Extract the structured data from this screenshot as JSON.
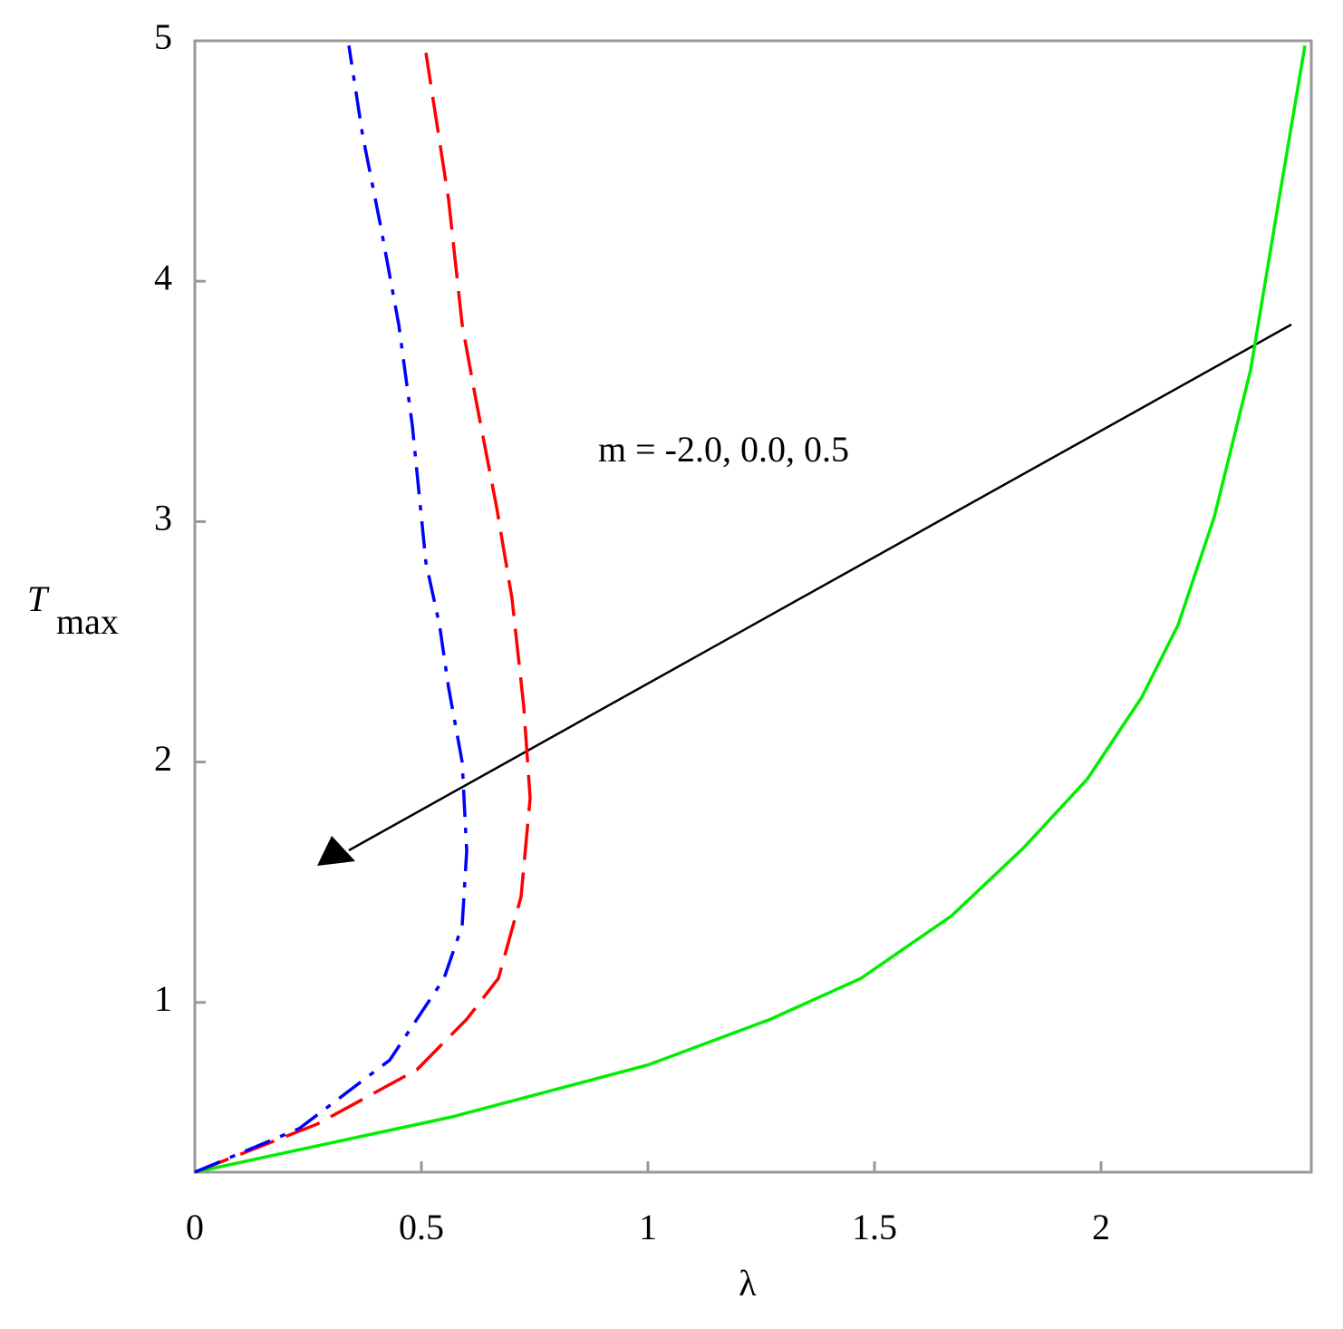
{
  "chart_data": {
    "type": "line",
    "xlabel": "λ",
    "ylabel": "T",
    "ylabel_subscript": "max",
    "annotation": "m = -2.0, 0.0, 0.5",
    "xlim": [
      0,
      2.464
    ],
    "ylim": [
      0.294,
      5
    ],
    "xticks": [
      0,
      0.5,
      1,
      1.5,
      2
    ],
    "yticks": [
      1,
      2,
      3,
      4,
      5
    ],
    "series": [
      {
        "color": "#00ee00",
        "dash": "solid",
        "x": [
          0,
          0.57,
          1,
          1.27,
          1.47,
          1.67,
          1.83,
          1.97,
          2.09,
          2.17,
          2.25,
          2.33,
          2.39,
          2.45
        ],
        "values": [
          0.294,
          0.525,
          0.74,
          0.93,
          1.1,
          1.36,
          1.645,
          1.93,
          2.27,
          2.57,
          3.02,
          3.63,
          4.31,
          4.98
        ]
      },
      {
        "color": "#ff0000",
        "dash": "dash",
        "x": [
          0,
          0.27,
          0.49,
          0.6,
          0.67,
          0.72,
          0.74,
          0.726,
          0.7,
          0.666,
          0.62,
          0.59,
          0.56,
          0.51
        ],
        "values": [
          0.294,
          0.494,
          0.72,
          0.93,
          1.1,
          1.44,
          1.85,
          2.23,
          2.68,
          3.06,
          3.51,
          3.82,
          4.34,
          4.95
        ]
      },
      {
        "color": "#0000ff",
        "dash": "dashdot",
        "x": [
          0,
          0.23,
          0.43,
          0.55,
          0.59,
          0.6,
          0.59,
          0.56,
          0.54,
          0.51,
          0.48,
          0.45,
          0.41,
          0.37,
          0.34
        ],
        "values": [
          0.294,
          0.475,
          0.76,
          1.1,
          1.32,
          1.63,
          2.0,
          2.31,
          2.57,
          2.83,
          3.4,
          3.82,
          4.23,
          4.61,
          4.98
        ]
      }
    ]
  }
}
